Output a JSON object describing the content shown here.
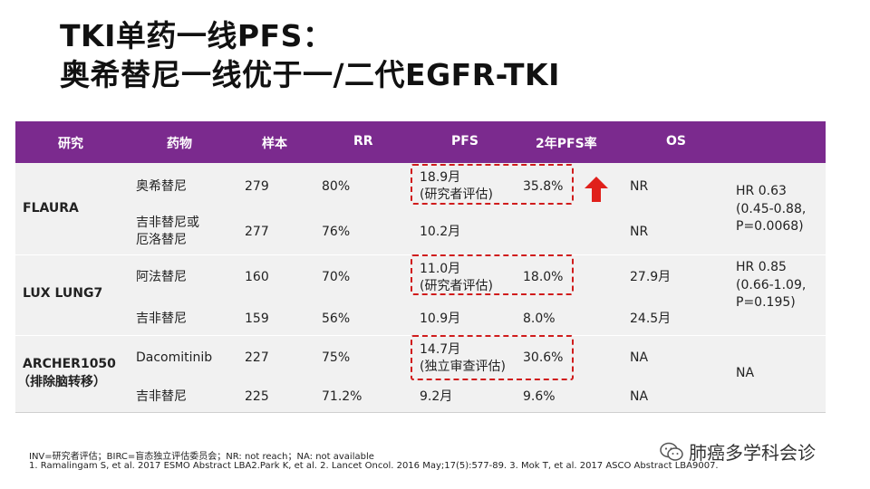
{
  "slide": {
    "title_line1": "TKI单药一线PFS：",
    "title_line2": "奥希替尼一线优于一/二代EGFR-TKI"
  },
  "table": {
    "headers": [
      "研究",
      "药物",
      "样本",
      "RR",
      "PFS",
      "2年PFS率",
      "OS"
    ],
    "studies": [
      {
        "name": "FLAURA",
        "hr": [
          "HR 0.63",
          "(0.45-0.88,",
          "P=0.0068)"
        ],
        "rows": [
          {
            "drug": [
              "奥希替尼"
            ],
            "n": "279",
            "rr": "80%",
            "pfs": [
              "18.9月",
              "(研究者评估)"
            ],
            "pfs2y": "35.8%",
            "os": "NR"
          },
          {
            "drug": [
              "吉非替尼或",
              "厄洛替尼"
            ],
            "n": "277",
            "rr": "76%",
            "pfs": [
              "10.2月"
            ],
            "pfs2y": "",
            "os": "NR"
          }
        ]
      },
      {
        "name": "LUX LUNG7",
        "hr": [
          "HR 0.85",
          "(0.66-1.09,",
          "P=0.195)"
        ],
        "rows": [
          {
            "drug": [
              "阿法替尼"
            ],
            "n": "160",
            "rr": "70%",
            "pfs": [
              "11.0月",
              "(研究者评估)"
            ],
            "pfs2y": "18.0%",
            "os": "27.9月"
          },
          {
            "drug": [
              "吉非替尼"
            ],
            "n": "159",
            "rr": "56%",
            "pfs": [
              "10.9月"
            ],
            "pfs2y": "8.0%",
            "os": "24.5月"
          }
        ]
      },
      {
        "name": "ARCHER1050",
        "subname": "（排除脑转移）",
        "hr": [
          "NA"
        ],
        "rows": [
          {
            "drug": [
              "Dacomitinib"
            ],
            "n": "227",
            "rr": "75%",
            "pfs": [
              "14.7月",
              "(独立审查评估)"
            ],
            "pfs2y": "30.6%",
            "os": "NA"
          },
          {
            "drug": [
              "吉非替尼"
            ],
            "n": "225",
            "rr": "71.2%",
            "pfs": [
              "9.2月"
            ],
            "pfs2y": "9.6%",
            "os": "NA"
          }
        ]
      }
    ],
    "highlight_color": "#d01c1c",
    "header_color": "#7b2a8e"
  },
  "footnotes": {
    "line1": "INV=研究者评估；BIRC=盲态独立评估委员会；NR: not reach；NA: not available",
    "line2": "1. Ramalingam S, et al. 2017 ESMO Abstract LBA2.Park K, et al. 2. Lancet Oncol. 2016 May;17(5):577-89. 3. Mok T, et al.  2017 ASCO Abstract LBA9007."
  },
  "brand": {
    "icon": "wechat-icon",
    "text": "肺癌多学科会诊"
  }
}
